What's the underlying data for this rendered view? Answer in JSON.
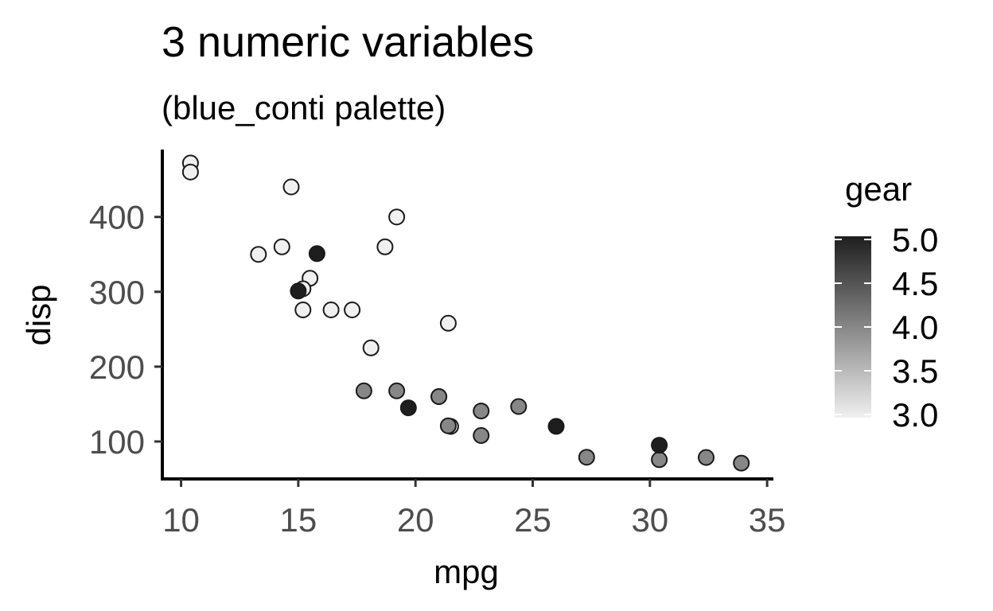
{
  "chart_data": {
    "type": "scatter",
    "title": "3 numeric variables",
    "subtitle": "(blue_conti palette)",
    "xlabel": "mpg",
    "ylabel": "disp",
    "xlim": [
      9.2,
      35.2
    ],
    "ylim": [
      50,
      490
    ],
    "x_ticks": [
      10,
      15,
      20,
      25,
      30,
      35
    ],
    "y_ticks": [
      100,
      200,
      300,
      400
    ],
    "grid": false,
    "color_var": "gear",
    "color_range": [
      3,
      5
    ],
    "color_low": "#f0f0f0",
    "color_high": "#1e1e1e",
    "legend": {
      "title": "gear",
      "placement": "right",
      "ticks": [
        "5.0",
        "4.5",
        "4.0",
        "3.5",
        "3.0"
      ]
    },
    "points": [
      {
        "x": 21.0,
        "y": 160,
        "c": 4
      },
      {
        "x": 21.0,
        "y": 160,
        "c": 4
      },
      {
        "x": 22.8,
        "y": 108,
        "c": 4
      },
      {
        "x": 21.4,
        "y": 258,
        "c": 3
      },
      {
        "x": 18.7,
        "y": 360,
        "c": 3
      },
      {
        "x": 18.1,
        "y": 225,
        "c": 3
      },
      {
        "x": 14.3,
        "y": 360,
        "c": 3
      },
      {
        "x": 24.4,
        "y": 146.7,
        "c": 4
      },
      {
        "x": 22.8,
        "y": 140.8,
        "c": 4
      },
      {
        "x": 19.2,
        "y": 167.6,
        "c": 4
      },
      {
        "x": 17.8,
        "y": 167.6,
        "c": 4
      },
      {
        "x": 16.4,
        "y": 275.8,
        "c": 3
      },
      {
        "x": 17.3,
        "y": 275.8,
        "c": 3
      },
      {
        "x": 15.2,
        "y": 275.8,
        "c": 3
      },
      {
        "x": 10.4,
        "y": 472,
        "c": 3
      },
      {
        "x": 10.4,
        "y": 460,
        "c": 3
      },
      {
        "x": 14.7,
        "y": 440,
        "c": 3
      },
      {
        "x": 32.4,
        "y": 78.7,
        "c": 4
      },
      {
        "x": 30.4,
        "y": 75.7,
        "c": 4
      },
      {
        "x": 33.9,
        "y": 71.1,
        "c": 4
      },
      {
        "x": 21.5,
        "y": 120.1,
        "c": 3
      },
      {
        "x": 15.5,
        "y": 318,
        "c": 3
      },
      {
        "x": 15.2,
        "y": 304,
        "c": 3
      },
      {
        "x": 13.3,
        "y": 350,
        "c": 3
      },
      {
        "x": 19.2,
        "y": 400,
        "c": 3
      },
      {
        "x": 27.3,
        "y": 79,
        "c": 4
      },
      {
        "x": 26.0,
        "y": 120.3,
        "c": 5
      },
      {
        "x": 30.4,
        "y": 95.1,
        "c": 5
      },
      {
        "x": 15.8,
        "y": 351,
        "c": 5
      },
      {
        "x": 19.7,
        "y": 145,
        "c": 5
      },
      {
        "x": 15.0,
        "y": 301,
        "c": 5
      },
      {
        "x": 21.4,
        "y": 121,
        "c": 4
      }
    ]
  }
}
